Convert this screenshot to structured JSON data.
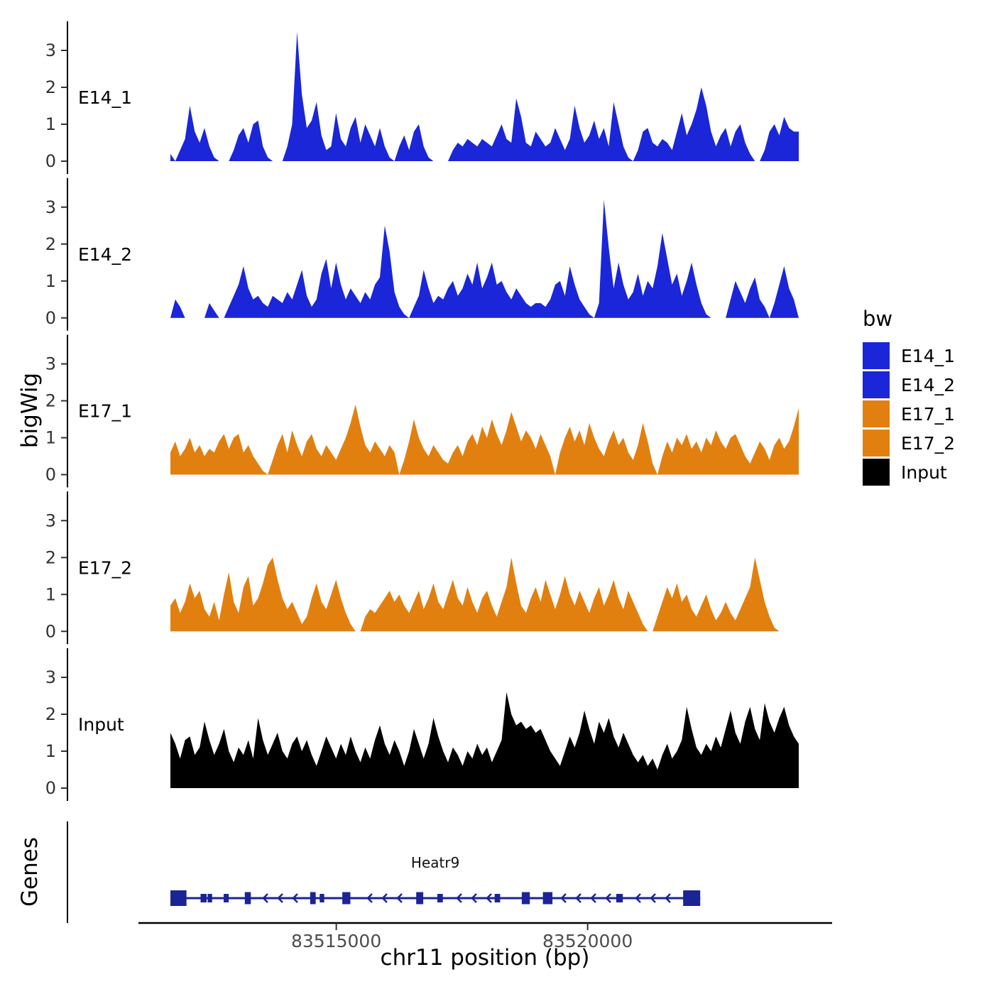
{
  "figure": {
    "ylabel": "bigWig",
    "genes_label": "Genes",
    "xlabel": "chr11 position (bp)"
  },
  "legend": {
    "title": "bw",
    "entries": [
      {
        "label": "E14_1",
        "color": "#1A26D8"
      },
      {
        "label": "E14_2",
        "color": "#1A26D8"
      },
      {
        "label": "E17_1",
        "color": "#E2800F"
      },
      {
        "label": "E17_2",
        "color": "#E2800F"
      },
      {
        "label": "Input",
        "color": "#000000"
      }
    ]
  },
  "chart_data": {
    "type": "area",
    "xlabel": "chr11 position (bp)",
    "ylabel": "bigWig",
    "x_start_bp": 83511700,
    "x_end_bp": 83524200,
    "x_ticks": [
      "83515000",
      "83520000"
    ],
    "x_tick_bp": [
      83515000,
      83520000
    ],
    "yticks": [
      0,
      1,
      2,
      3
    ],
    "ylim": [
      0,
      3.8
    ],
    "tracks": [
      {
        "name": "E14_1",
        "color": "#1A26D8",
        "values": [
          0.2,
          0,
          0.3,
          0.6,
          1.5,
          0.8,
          0.5,
          0.9,
          0.4,
          0.1,
          0,
          0,
          0,
          0.3,
          0.7,
          0.9,
          0.5,
          1,
          1.1,
          0.4,
          0.1,
          0,
          0,
          0,
          0.4,
          1,
          3.5,
          1.8,
          0.9,
          1.1,
          1.6,
          0.7,
          0.3,
          0.4,
          1.3,
          0.6,
          0.4,
          0.9,
          1.2,
          0.5,
          1,
          0.7,
          0.4,
          0.9,
          0.4,
          0.1,
          0,
          0.4,
          0.7,
          0.3,
          0.8,
          1,
          0.4,
          0.1,
          0,
          0,
          0,
          0,
          0.3,
          0.5,
          0.4,
          0.6,
          0.5,
          0.4,
          0.6,
          0.5,
          0.4,
          0.7,
          1,
          0.6,
          0.5,
          1.7,
          1.2,
          0.5,
          0.4,
          0.8,
          0.6,
          0.4,
          0.5,
          0.9,
          0.6,
          0.3,
          0.6,
          1.5,
          0.9,
          0.5,
          0.7,
          1.1,
          0.6,
          0.9,
          0.4,
          1.6,
          1,
          0.4,
          0.1,
          0,
          0.3,
          0.8,
          0.9,
          0.5,
          0.4,
          0.6,
          0.5,
          0.3,
          0.8,
          1.3,
          0.7,
          1,
          1.4,
          2,
          1.5,
          0.8,
          0.4,
          0.7,
          0.9,
          0.4,
          0.8,
          1,
          0.5,
          0.2,
          0,
          0,
          0.3,
          0.8,
          1,
          0.7,
          1.2,
          0.9,
          0.8,
          0.8
        ]
      },
      {
        "name": "E14_2",
        "color": "#1A26D8",
        "values": [
          0,
          0.5,
          0.3,
          0,
          0,
          0,
          0,
          0,
          0.4,
          0.2,
          0,
          0,
          0.3,
          0.6,
          0.9,
          1.4,
          0.8,
          0.5,
          0.6,
          0.4,
          0.3,
          0.6,
          0.5,
          0.4,
          0.7,
          0.5,
          0.9,
          1.3,
          0.6,
          0.3,
          0.5,
          1.2,
          1.6,
          0.8,
          1.5,
          0.9,
          0.5,
          0.8,
          0.6,
          0.4,
          0.7,
          0.5,
          0.9,
          1.1,
          2.5,
          1.8,
          0.7,
          0.3,
          0.1,
          0,
          0.3,
          0.6,
          1.3,
          0.8,
          0.4,
          0.6,
          0.5,
          0.8,
          1,
          0.6,
          0.8,
          1.2,
          0.9,
          1.5,
          0.8,
          1.1,
          1.5,
          0.9,
          1,
          0.7,
          0.5,
          0.8,
          0.6,
          0.4,
          0.3,
          0.4,
          0.4,
          0.3,
          0.5,
          0.9,
          1,
          0.6,
          1.4,
          0.9,
          0.5,
          0.3,
          0.1,
          0,
          0.4,
          3.2,
          1.9,
          0.8,
          1.5,
          0.9,
          0.5,
          0.7,
          1.2,
          0.6,
          1,
          0.8,
          1.4,
          2.3,
          1.6,
          0.9,
          1.2,
          0.6,
          1,
          1.5,
          0.9,
          0.4,
          0.1,
          0,
          0,
          0,
          0,
          0.5,
          1,
          0.7,
          0.4,
          0.8,
          1.1,
          0.5,
          0.3,
          0,
          0.4,
          0.9,
          1.4,
          0.8,
          0.5,
          0
        ]
      },
      {
        "name": "E17_1",
        "color": "#E2800F",
        "values": [
          0.6,
          0.9,
          0.5,
          0.7,
          1,
          0.6,
          0.8,
          0.5,
          0.7,
          0.6,
          0.9,
          1.1,
          0.7,
          1,
          1.1,
          0.6,
          0.8,
          0.5,
          0.3,
          0.1,
          0,
          0.4,
          0.8,
          1.1,
          0.6,
          1.2,
          0.8,
          0.5,
          0.9,
          1.1,
          0.7,
          0.5,
          0.8,
          0.6,
          0.4,
          0.7,
          1,
          1.4,
          1.9,
          1.3,
          0.8,
          0.6,
          0.9,
          0.7,
          0.5,
          0.8,
          0.6,
          0,
          0.4,
          0.9,
          1.5,
          1,
          0.7,
          0.5,
          0.8,
          0.6,
          0.4,
          0.3,
          0.6,
          0.8,
          0.5,
          0.9,
          1.1,
          0.8,
          1.3,
          1,
          1.5,
          1.1,
          0.8,
          1.2,
          1.7,
          1.3,
          0.9,
          1.2,
          1,
          0.7,
          1.1,
          0.8,
          0.5,
          0,
          0.6,
          1,
          1.3,
          0.9,
          1.2,
          0.8,
          1.4,
          1,
          0.7,
          0.5,
          0.9,
          1.2,
          0.8,
          1,
          0.6,
          0.4,
          0.8,
          1.4,
          0.9,
          0.3,
          0,
          0.5,
          0.9,
          0.6,
          1,
          0.8,
          1.1,
          0.7,
          0.9,
          0.6,
          1,
          0.8,
          1.2,
          0.9,
          0.7,
          1,
          1.1,
          0.8,
          0.5,
          0.3,
          0.6,
          0.9,
          0.7,
          0.4,
          0.8,
          1,
          0.7,
          0.9,
          1.3,
          1.8
        ]
      },
      {
        "name": "E17_2",
        "color": "#E2800F",
        "values": [
          0.7,
          0.9,
          0.5,
          0.8,
          1.3,
          0.9,
          1.1,
          0.6,
          0.4,
          0.8,
          0.3,
          1,
          1.6,
          0.8,
          0.5,
          1.2,
          1.5,
          0.7,
          0.9,
          1.3,
          1.8,
          2,
          1.4,
          0.9,
          0.6,
          0.8,
          0.5,
          0.2,
          0.4,
          0.9,
          1.3,
          0.8,
          0.6,
          1,
          1.4,
          0.9,
          0.5,
          0.2,
          0,
          0,
          0.4,
          0.6,
          0.5,
          0.7,
          0.9,
          1.1,
          0.8,
          1,
          0.7,
          0.5,
          0.8,
          1.1,
          0.6,
          0.9,
          1.3,
          0.8,
          0.6,
          1,
          1.4,
          0.9,
          0.7,
          1.2,
          0.8,
          0.5,
          0.9,
          1.1,
          0.7,
          0.4,
          0.8,
          1.2,
          2,
          1.3,
          0.7,
          0.5,
          0.9,
          1.2,
          0.8,
          1.4,
          1,
          0.6,
          1,
          1.5,
          1,
          0.7,
          1.1,
          0.8,
          0.5,
          0.9,
          1.2,
          0.7,
          1,
          1.4,
          0.9,
          0.6,
          1.1,
          0.8,
          0.5,
          0.2,
          0,
          0,
          0.4,
          0.8,
          1.2,
          0.9,
          1.3,
          0.8,
          1,
          0.6,
          0.4,
          0.7,
          1,
          0.6,
          0.3,
          0.5,
          0.8,
          0.5,
          0.3,
          0.6,
          0.9,
          1.2,
          2,
          1.4,
          0.8,
          0.4,
          0.1,
          0,
          0,
          0,
          0,
          0
        ]
      },
      {
        "name": "Input",
        "color": "#000000",
        "values": [
          1.5,
          1.2,
          0.8,
          1.3,
          1.4,
          0.9,
          1.1,
          1.8,
          1.3,
          0.9,
          1.2,
          1.6,
          1,
          0.7,
          1.1,
          0.9,
          1.3,
          0.8,
          1.9,
          1.3,
          0.9,
          1.2,
          1.5,
          1,
          0.8,
          1.2,
          1.4,
          1,
          1.3,
          0.9,
          0.6,
          1,
          1.4,
          1.1,
          0.8,
          1.2,
          0.9,
          1.4,
          1,
          0.7,
          1.1,
          0.8,
          1.3,
          1.7,
          1.2,
          0.9,
          1.3,
          1,
          0.6,
          1,
          1.6,
          1.2,
          0.8,
          1.2,
          1.9,
          1.4,
          1,
          0.7,
          1.1,
          0.9,
          0.6,
          1,
          0.8,
          1.2,
          0.9,
          1.1,
          0.7,
          1,
          1.3,
          2.6,
          2,
          1.7,
          1.8,
          1.6,
          1.7,
          1.5,
          1.6,
          1.3,
          1,
          0.8,
          0.6,
          1,
          1.4,
          1.1,
          1.5,
          2.1,
          1.6,
          1.2,
          1.8,
          1.5,
          1.9,
          1.4,
          1.1,
          1.5,
          1.2,
          0.9,
          0.7,
          0.9,
          0.6,
          0.8,
          0.5,
          0.9,
          1.2,
          0.8,
          1,
          1.3,
          2.2,
          1.6,
          1.1,
          0.9,
          1.2,
          1,
          1.4,
          1.1,
          1.6,
          2.1,
          1.5,
          1.2,
          1.8,
          2.2,
          1.6,
          1.3,
          2.3,
          1.8,
          1.5,
          1.9,
          2.2,
          1.7,
          1.4,
          1.2
        ]
      }
    ],
    "gene_track": {
      "label": "Genes",
      "gene": {
        "name": "Heatr9",
        "strand": "-",
        "start_bp": 83511700,
        "end_bp": 83522240,
        "color": "#1B2496",
        "exons": [
          {
            "start": 83511700,
            "end": 83512020,
            "size": "lg"
          },
          {
            "start": 83512300,
            "end": 83512420,
            "size": "sm"
          },
          {
            "start": 83512440,
            "end": 83512530,
            "size": "sm"
          },
          {
            "start": 83512760,
            "end": 83512860,
            "size": "sm"
          },
          {
            "start": 83513180,
            "end": 83513300,
            "size": "md"
          },
          {
            "start": 83514480,
            "end": 83514590,
            "size": "md"
          },
          {
            "start": 83514670,
            "end": 83514760,
            "size": "sm"
          },
          {
            "start": 83515120,
            "end": 83515280,
            "size": "md"
          },
          {
            "start": 83516590,
            "end": 83516730,
            "size": "md"
          },
          {
            "start": 83517010,
            "end": 83517120,
            "size": "sm"
          },
          {
            "start": 83518150,
            "end": 83518260,
            "size": "sm"
          },
          {
            "start": 83518690,
            "end": 83518850,
            "size": "md"
          },
          {
            "start": 83519110,
            "end": 83519300,
            "size": "md"
          },
          {
            "start": 83520570,
            "end": 83520700,
            "size": "sm"
          },
          {
            "start": 83521900,
            "end": 83522240,
            "size": "lg"
          }
        ]
      }
    }
  }
}
